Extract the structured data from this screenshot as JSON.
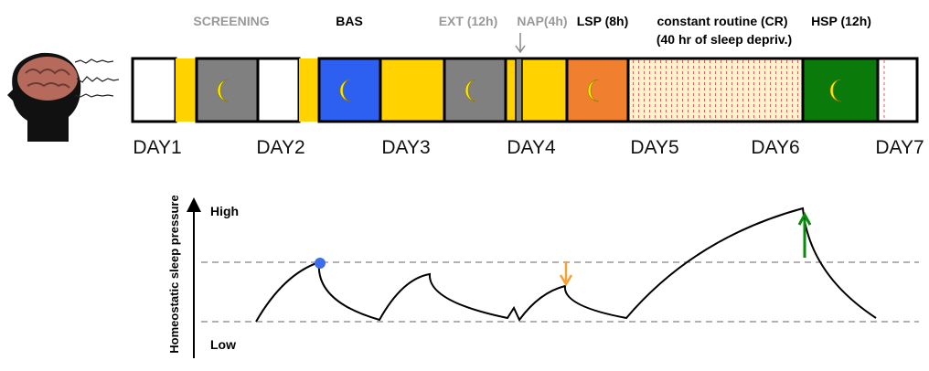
{
  "phases": [
    "SCREENING",
    "BAS",
    "EXT (12h)",
    "NAP(4h)",
    "LSP (8h)",
    "constant routine (CR)",
    "(40 hr of sleep depriv.)",
    "HSP (12h)"
  ],
  "days": [
    "DAY1",
    "DAY2",
    "DAY3",
    "DAY4",
    "DAY5",
    "DAY6",
    "DAY7"
  ],
  "y_axis": {
    "label": "Homeostatic sleep pressure",
    "high": "High",
    "low": "Low"
  }
}
